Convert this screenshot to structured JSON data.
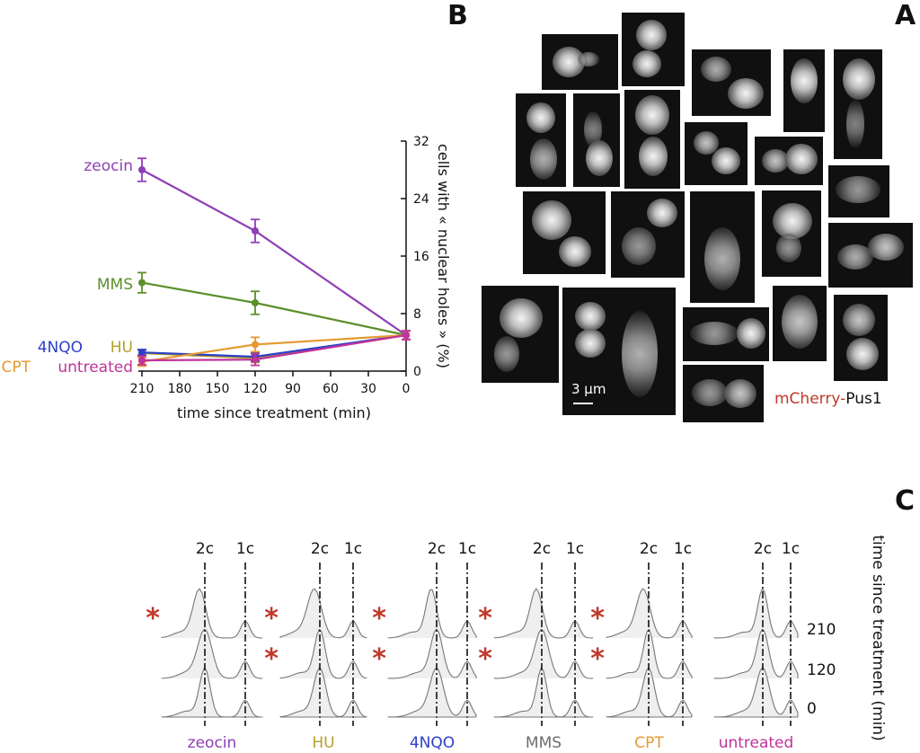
{
  "panels": {
    "a": "A",
    "b": "B",
    "c": "C"
  },
  "micrograph": {
    "label_part1": "mCherry-",
    "label_part2": "Pus1",
    "label_color1": "#c0392b",
    "label_color2": "#111111",
    "scale_text": "3 µm"
  },
  "chart_data": [
    {
      "type": "line",
      "ylabel": "cells with « nuclear holes » (%)",
      "xlabel": "time since treatment (min)",
      "x_ticks": [
        0,
        30,
        60,
        90,
        120,
        150,
        180,
        210
      ],
      "y_ticks": [
        0,
        8,
        16,
        24,
        32
      ],
      "xlim": [
        0,
        210
      ],
      "ylim": [
        0,
        32
      ],
      "x": [
        0,
        120,
        210
      ],
      "series": [
        {
          "name": "zeocin",
          "color": "#8e3fb5",
          "values": [
            5,
            19.5,
            28
          ],
          "err": [
            0.6,
            1.6,
            1.6
          ]
        },
        {
          "name": "MMS",
          "color": "#5a8f2a",
          "values": [
            5,
            9.5,
            12.3
          ],
          "err": [
            0.6,
            1.6,
            1.4
          ]
        },
        {
          "name": "HU",
          "color": "#b5a02c",
          "values": [
            5,
            1.8,
            2.5
          ],
          "err": [
            0.6,
            0.6,
            0.4
          ]
        },
        {
          "name": "4NQO",
          "color": "#2d3fc8",
          "values": [
            5,
            2.0,
            2.6
          ],
          "err": [
            0.6,
            0.6,
            0.4
          ]
        },
        {
          "name": "CPT",
          "color": "#e59a30",
          "values": [
            5,
            3.7,
            1.3
          ],
          "err": [
            0.6,
            1.0,
            0.6
          ]
        },
        {
          "name": "untreated",
          "color": "#c03399",
          "values": [
            5,
            1.6,
            1.5
          ],
          "err": [
            0.6,
            0.8,
            0.6
          ]
        }
      ],
      "legend_labels": [
        {
          "name": "zeocin",
          "color": "#8e3fb5"
        },
        {
          "name": "MMS",
          "color": "#5a8f2a"
        },
        {
          "name": "HU",
          "color": "#b5a02c"
        },
        {
          "name": "4NQO",
          "color": "#2d3fc8"
        },
        {
          "name": "CPT",
          "color": "#e59a30"
        },
        {
          "name": "untreated",
          "color": "#c03399"
        }
      ]
    },
    {
      "type": "area",
      "axis_label": "time since treatment (min)",
      "times": [
        "210",
        "120",
        "0"
      ],
      "peak_labels": [
        "1c",
        "2c"
      ],
      "asterisk": "*",
      "asterisk_color": "#c0392b",
      "groups": [
        {
          "name": "untreated",
          "color": "#c03399",
          "asterisks": [
            false,
            false,
            false
          ]
        },
        {
          "name": "CPT",
          "color": "#e59a30",
          "asterisks": [
            true,
            true,
            false
          ]
        },
        {
          "name": "MMS",
          "color": "#6d6d6d",
          "asterisks": [
            true,
            true,
            false
          ]
        },
        {
          "name": "4NQO",
          "color": "#2d3fc8",
          "asterisks": [
            true,
            true,
            false
          ]
        },
        {
          "name": "HU",
          "color": "#b5a02c",
          "asterisks": [
            true,
            true,
            false
          ]
        },
        {
          "name": "zeocin",
          "color": "#8e3fb5",
          "asterisks": [
            true,
            false,
            false
          ]
        }
      ]
    }
  ]
}
